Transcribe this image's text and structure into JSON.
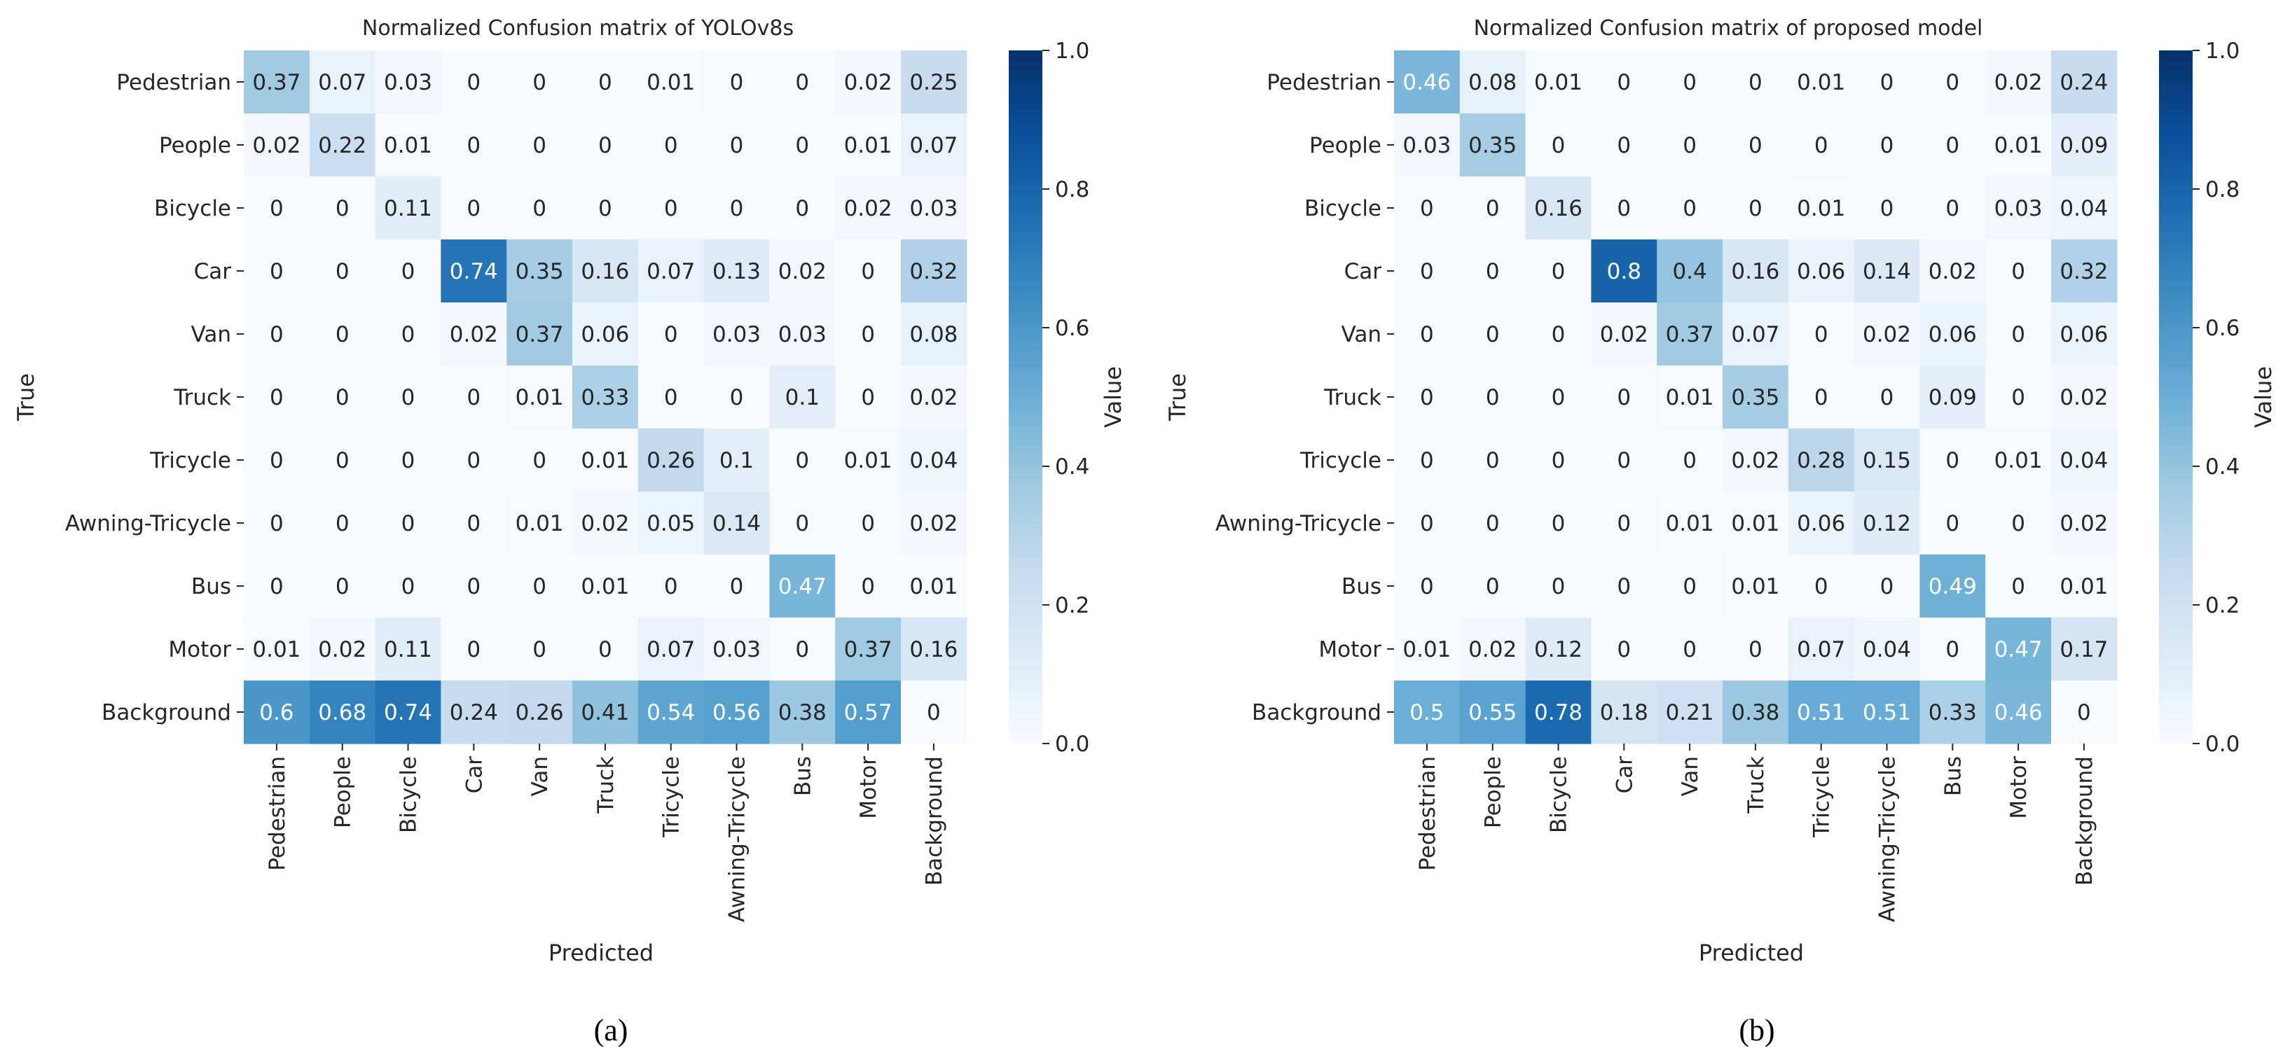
{
  "chart_data": [
    {
      "type": "heatmap",
      "panel_label": "(a)",
      "title": "Normalized Confusion matrix of YOLOv8s",
      "xlabel": "Predicted",
      "ylabel": "True",
      "colorbar_label": "Value",
      "colorbar_ticks": [
        "0.0",
        "0.2",
        "0.4",
        "0.6",
        "0.8",
        "1.0"
      ],
      "vmin": 0,
      "vmax": 1,
      "rows": [
        "Pedestrian",
        "People",
        "Bicycle",
        "Car",
        "Van",
        "Truck",
        "Tricycle",
        "Awning-Tricycle",
        "Bus",
        "Motor",
        "Background"
      ],
      "columns": [
        "Pedestrian",
        "People",
        "Bicycle",
        "Car",
        "Van",
        "Truck",
        "Tricycle",
        "Awning-Tricycle",
        "Bus",
        "Motor",
        "Background"
      ],
      "values": [
        [
          0.37,
          0.07,
          0.03,
          0,
          0,
          0,
          0.01,
          0,
          0,
          0.02,
          0.25
        ],
        [
          0.02,
          0.22,
          0.01,
          0,
          0,
          0,
          0,
          0,
          0,
          0.01,
          0.07
        ],
        [
          0,
          0,
          0.11,
          0,
          0,
          0,
          0,
          0,
          0,
          0.02,
          0.03
        ],
        [
          0,
          0,
          0,
          0.74,
          0.35,
          0.16,
          0.07,
          0.13,
          0.02,
          0,
          0.32
        ],
        [
          0,
          0,
          0,
          0.02,
          0.37,
          0.06,
          0,
          0.03,
          0.03,
          0,
          0.08
        ],
        [
          0,
          0,
          0,
          0,
          0.01,
          0.33,
          0,
          0,
          0.1,
          0,
          0.02
        ],
        [
          0,
          0,
          0,
          0,
          0,
          0.01,
          0.26,
          0.1,
          0,
          0.01,
          0.04
        ],
        [
          0,
          0,
          0,
          0,
          0.01,
          0.02,
          0.05,
          0.14,
          0,
          0,
          0.02
        ],
        [
          0,
          0,
          0,
          0,
          0,
          0.01,
          0,
          0,
          0.47,
          0,
          0.01
        ],
        [
          0.01,
          0.02,
          0.11,
          0,
          0,
          0,
          0.07,
          0.03,
          0,
          0.37,
          0.16
        ],
        [
          0.6,
          0.68,
          0.74,
          0.24,
          0.26,
          0.41,
          0.54,
          0.56,
          0.38,
          0.57,
          0
        ]
      ]
    },
    {
      "type": "heatmap",
      "panel_label": "(b)",
      "title": "Normalized Confusion matrix of proposed model",
      "xlabel": "Predicted",
      "ylabel": "True",
      "colorbar_label": "Value",
      "colorbar_ticks": [
        "0.0",
        "0.2",
        "0.4",
        "0.6",
        "0.8",
        "1.0"
      ],
      "vmin": 0,
      "vmax": 1,
      "rows": [
        "Pedestrian",
        "People",
        "Bicycle",
        "Car",
        "Van",
        "Truck",
        "Tricycle",
        "Awning-Tricycle",
        "Bus",
        "Motor",
        "Background"
      ],
      "columns": [
        "Pedestrian",
        "People",
        "Bicycle",
        "Car",
        "Van",
        "Truck",
        "Tricycle",
        "Awning-Tricycle",
        "Bus",
        "Motor",
        "Background"
      ],
      "values": [
        [
          0.46,
          0.08,
          0.01,
          0,
          0,
          0,
          0.01,
          0,
          0,
          0.02,
          0.24
        ],
        [
          0.03,
          0.35,
          0,
          0,
          0,
          0,
          0,
          0,
          0,
          0.01,
          0.09
        ],
        [
          0,
          0,
          0.16,
          0,
          0,
          0,
          0.01,
          0,
          0,
          0.03,
          0.04
        ],
        [
          0,
          0,
          0,
          0.8,
          0.4,
          0.16,
          0.06,
          0.14,
          0.02,
          0,
          0.32
        ],
        [
          0,
          0,
          0,
          0.02,
          0.37,
          0.07,
          0,
          0.02,
          0.06,
          0,
          0.06
        ],
        [
          0,
          0,
          0,
          0,
          0.01,
          0.35,
          0,
          0,
          0.09,
          0,
          0.02
        ],
        [
          0,
          0,
          0,
          0,
          0,
          0.02,
          0.28,
          0.15,
          0,
          0.01,
          0.04
        ],
        [
          0,
          0,
          0,
          0,
          0.01,
          0.01,
          0.06,
          0.12,
          0,
          0,
          0.02
        ],
        [
          0,
          0,
          0,
          0,
          0,
          0.01,
          0,
          0,
          0.49,
          0,
          0.01
        ],
        [
          0.01,
          0.02,
          0.12,
          0,
          0,
          0,
          0.07,
          0.04,
          0,
          0.47,
          0.17
        ],
        [
          0.5,
          0.55,
          0.78,
          0.18,
          0.21,
          0.38,
          0.51,
          0.51,
          0.33,
          0.46,
          0
        ]
      ]
    }
  ],
  "colors": {
    "colormap": "Blues",
    "low": "#f7fbff",
    "high": "#08306b",
    "text_dark": "#262626",
    "text_light": "#ffffff"
  }
}
